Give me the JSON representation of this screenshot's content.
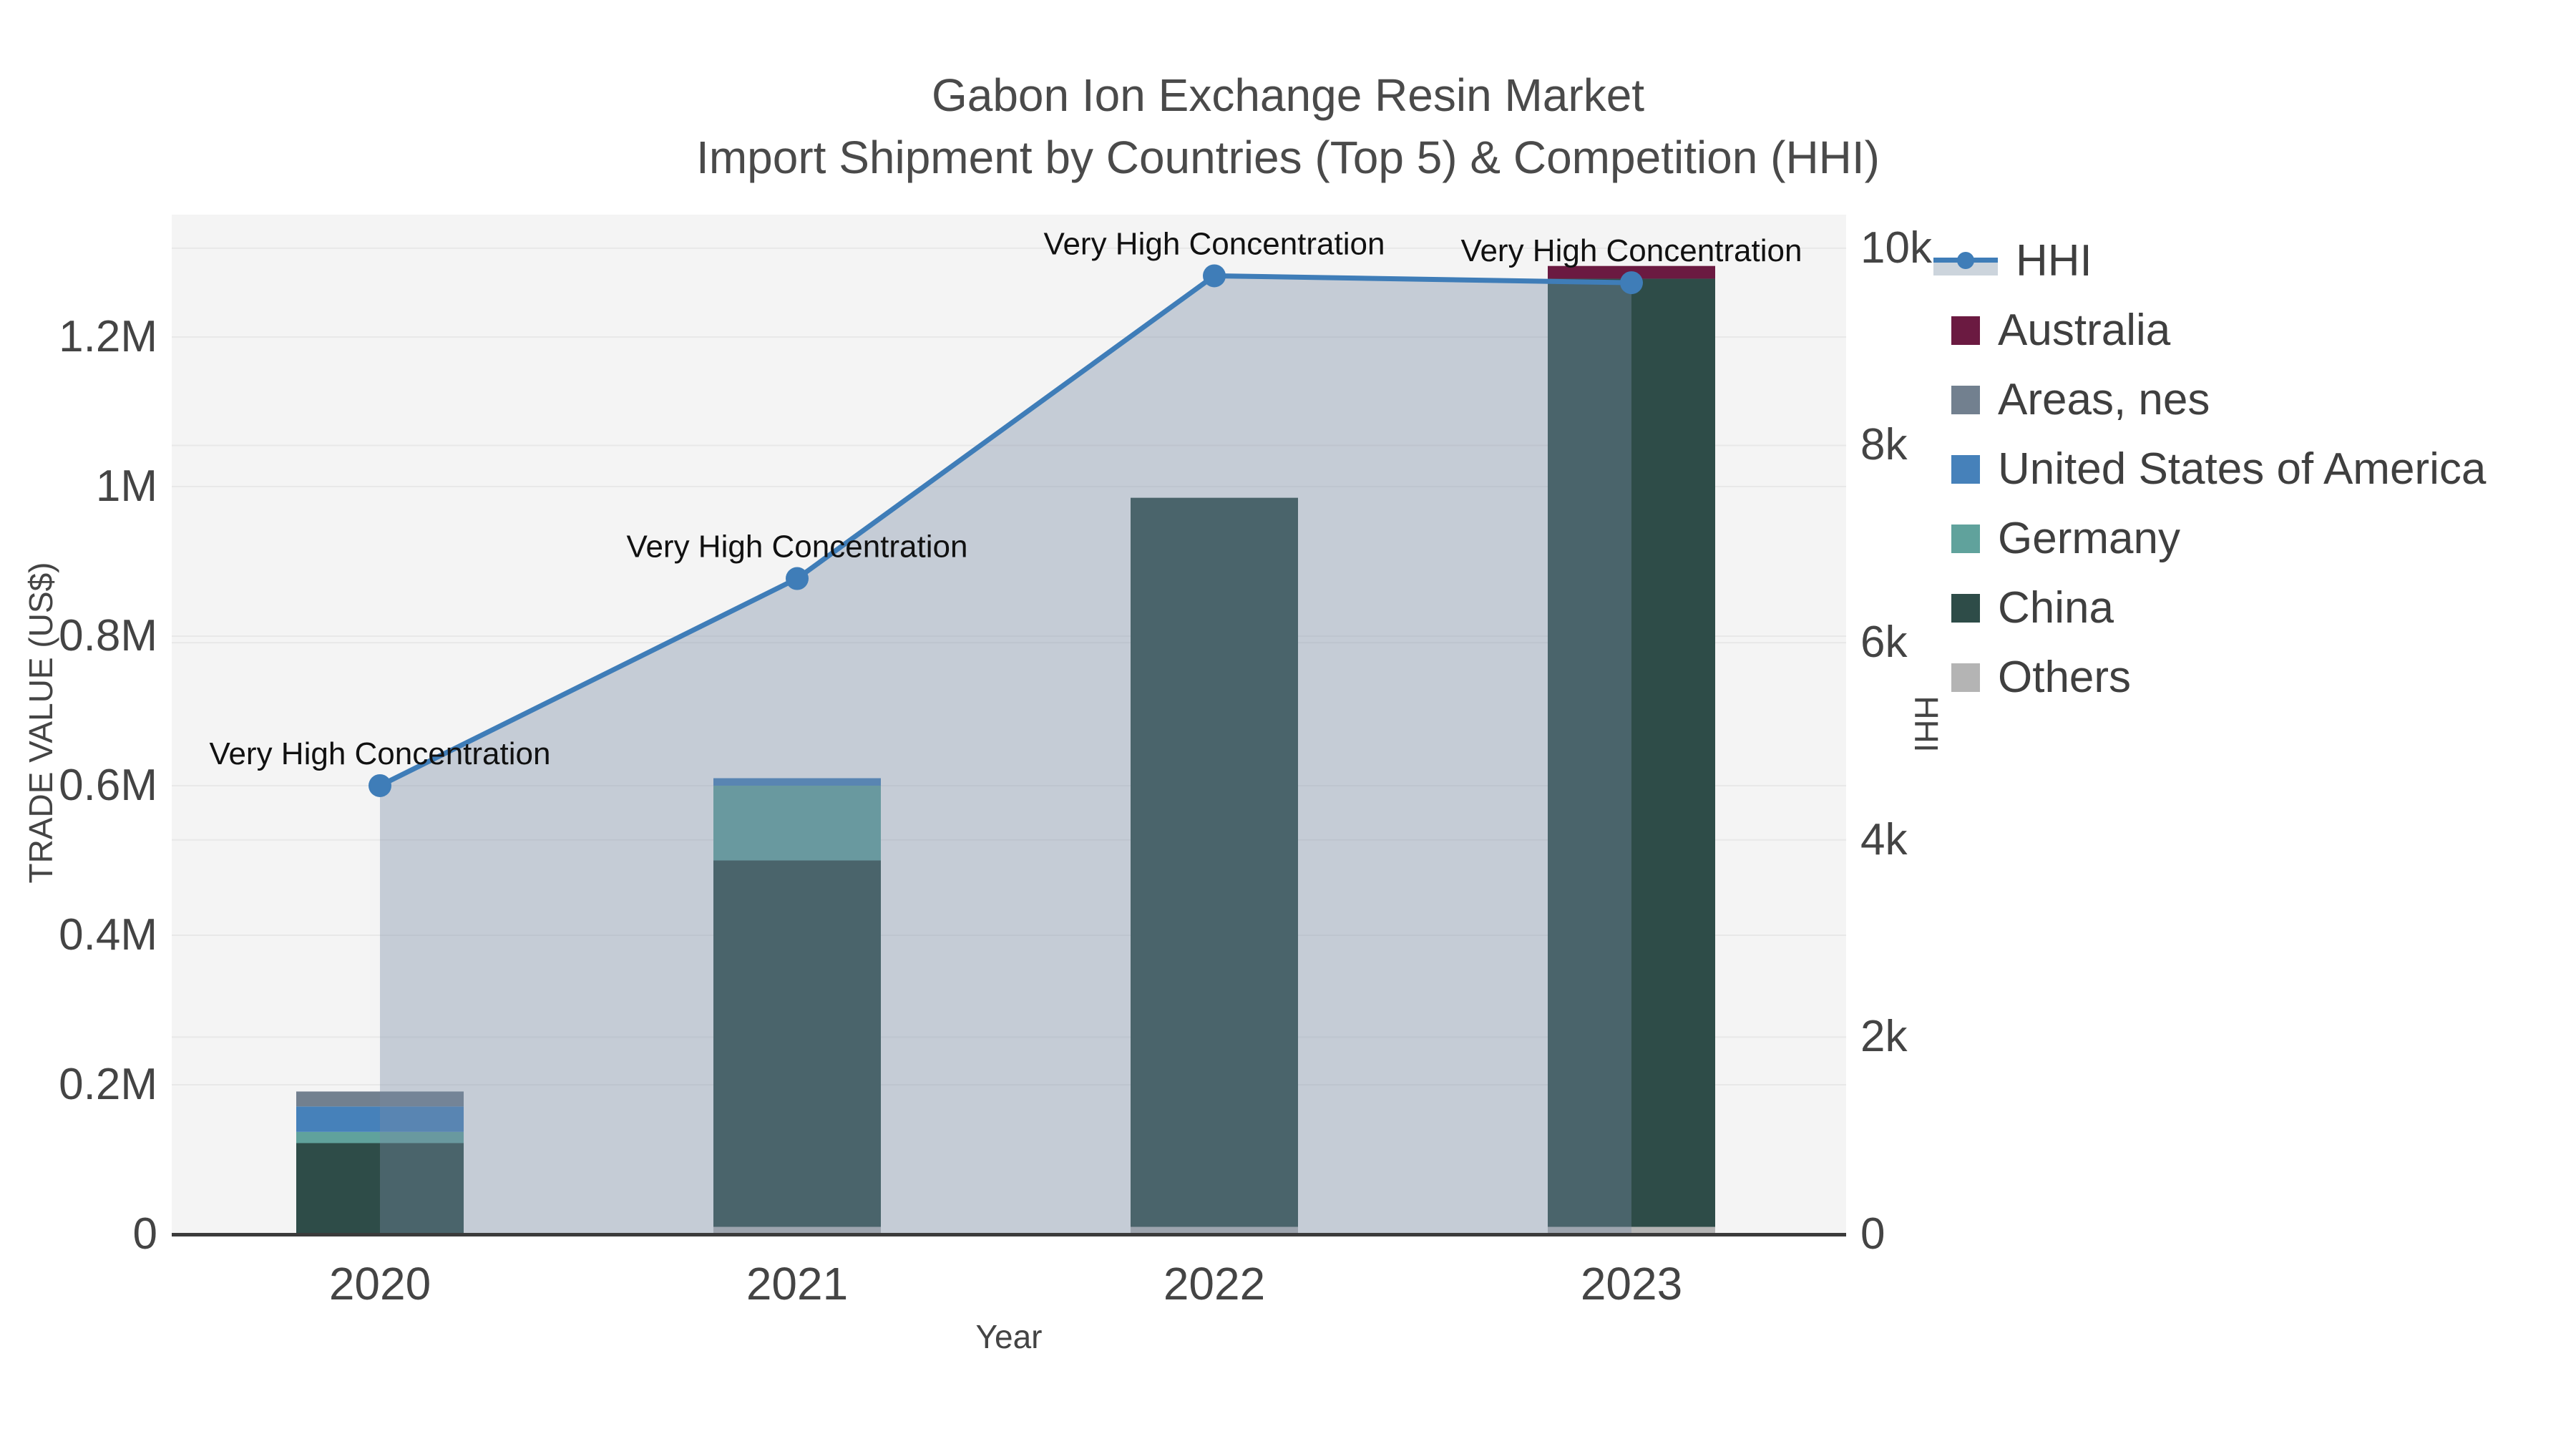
{
  "title": {
    "line1": "Gabon Ion Exchange Resin Market",
    "line2": "Import Shipment by Countries (Top 5) & Competition (HHI)"
  },
  "axes": {
    "xlabel": "Year",
    "ylabel_left": "TRADE VALUE (US$)",
    "ylabel_right": "HHI",
    "yticks_left": {
      "labels": [
        "0",
        "0.2M",
        "0.4M",
        "0.6M",
        "0.8M",
        "1M",
        "1.2M"
      ],
      "values": [
        0,
        200000,
        400000,
        600000,
        800000,
        1000000,
        1200000
      ]
    },
    "yticks_right": {
      "labels": [
        "0",
        "2k",
        "4k",
        "6k",
        "8k",
        "10k"
      ],
      "values": [
        0,
        2000,
        4000,
        6000,
        8000,
        10000
      ]
    }
  },
  "chart_data": {
    "type": "combo: stacked-bar + line-area (dual axis)",
    "categories": [
      "2020",
      "2021",
      "2022",
      "2023"
    ],
    "xlabel": "Year",
    "ylabel": "TRADE VALUE (US$)",
    "ylabel_secondary": "HHI",
    "ylim_left": [
      0,
      1363600
    ],
    "ylim_right": [
      0,
      10340
    ],
    "grid": true,
    "legend_position": "right-outside",
    "plot_bg": "#f4f4f4",
    "grid_color": "#e8e8e8",
    "bar_series": [
      {
        "name": "Others",
        "color": "#b4b4b4",
        "values": [
          0,
          10000,
          10000,
          10000
        ]
      },
      {
        "name": "China",
        "color": "#2e4c48",
        "values": [
          122000,
          490000,
          975000,
          1268000
        ]
      },
      {
        "name": "Germany",
        "color": "#60a29c",
        "values": [
          15000,
          100000,
          0,
          0
        ]
      },
      {
        "name": "United States of America",
        "color": "#4681ba",
        "values": [
          34000,
          10000,
          0,
          0
        ]
      },
      {
        "name": "Areas, nes",
        "color": "#72808f",
        "values": [
          20000,
          0,
          0,
          0
        ]
      },
      {
        "name": "Australia",
        "color": "#6b1a41",
        "values": [
          0,
          0,
          0,
          17000
        ]
      }
    ],
    "bar_totals": [
      191000,
      610000,
      985000,
      1295000
    ],
    "line_series": {
      "name": "HHI",
      "color": "#3f7db8",
      "area_fill": "rgba(120,140,165,0.38)",
      "values": [
        4550,
        6650,
        9720,
        9650
      ]
    },
    "annotation_text": "Very High Concentration",
    "annotation_points": [
      0,
      1,
      2,
      3
    ]
  },
  "legend": {
    "items": [
      {
        "label": "HHI",
        "kind": "line",
        "color": "#3f7db8"
      },
      {
        "label": "Australia",
        "kind": "box",
        "color": "#6b1a41"
      },
      {
        "label": "Areas, nes",
        "kind": "box",
        "color": "#72808f"
      },
      {
        "label": "United States of America",
        "kind": "box",
        "color": "#4681ba"
      },
      {
        "label": "Germany",
        "kind": "box",
        "color": "#60a29c"
      },
      {
        "label": "China",
        "kind": "box",
        "color": "#2e4c48"
      },
      {
        "label": "Others",
        "kind": "box",
        "color": "#b4b4b4"
      }
    ]
  }
}
